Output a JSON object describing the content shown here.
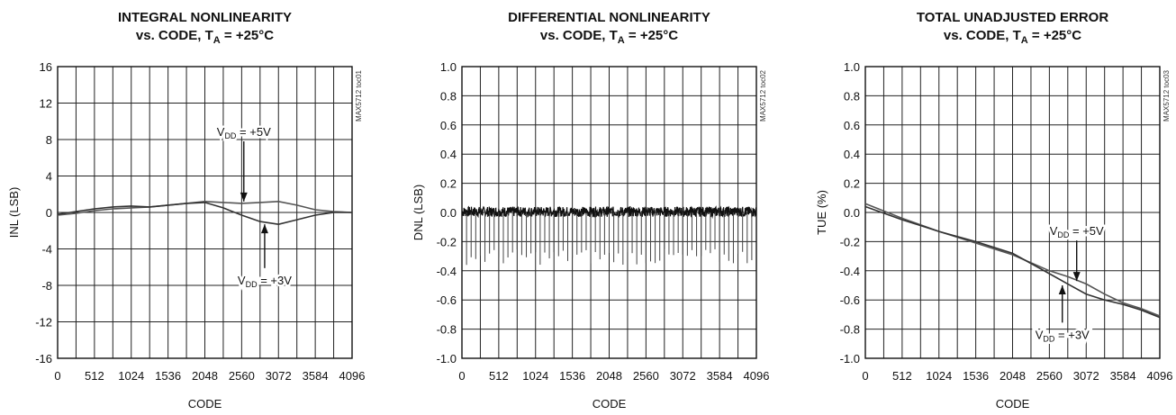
{
  "chart_data": [
    {
      "type": "line",
      "title_line1": "INTEGRAL NONLINEARITY",
      "title_line2_prefix": "vs. CODE, T",
      "title_line2_sub": "A",
      "title_line2_suffix": " = +25°C",
      "xlabel": "CODE",
      "ylabel": "INL (LSB)",
      "side_label": "MAX5712 toc01",
      "xlim": [
        0,
        4096
      ],
      "ylim": [
        -16,
        16
      ],
      "xticks": [
        "0",
        "512",
        "1024",
        "1536",
        "2048",
        "2560",
        "3072",
        "3584",
        "4096"
      ],
      "yticks": [
        "16",
        "12",
        "8",
        "4",
        "0",
        "-4",
        "-8",
        "-12",
        "-16"
      ],
      "grid": true,
      "series": [
        {
          "name": "VDD = +5V",
          "x": [
            0,
            256,
            512,
            768,
            1024,
            1280,
            1536,
            1792,
            2048,
            2304,
            2560,
            2816,
            3072,
            3328,
            3584,
            3840,
            4096
          ],
          "y": [
            -0.3,
            -0.1,
            0.2,
            0.4,
            0.5,
            0.6,
            0.8,
            1.0,
            1.2,
            1.1,
            1.0,
            1.1,
            1.2,
            0.8,
            0.3,
            0.1,
            0.0
          ]
        },
        {
          "name": "VDD = +3V",
          "x": [
            0,
            256,
            512,
            768,
            1024,
            1280,
            1536,
            1792,
            2048,
            2304,
            2560,
            2816,
            3072,
            3328,
            3584,
            3840,
            4096
          ],
          "y": [
            -0.2,
            0.1,
            0.4,
            0.6,
            0.7,
            0.6,
            0.8,
            1.0,
            1.1,
            0.5,
            -0.3,
            -1.0,
            -1.3,
            -0.8,
            -0.3,
            0.0,
            0.0
          ]
        }
      ],
      "annotations": [
        {
          "prefix": "V",
          "sub": "DD",
          "suffix": " = +5V",
          "code": 2590,
          "value": 8,
          "arrow_to": [
            2590,
            1.2
          ]
        },
        {
          "prefix": "V",
          "sub": "DD",
          "suffix": " = +3V",
          "code": 2880,
          "value": -6.5,
          "arrow_to": [
            2880,
            -1.3
          ]
        }
      ]
    },
    {
      "type": "line",
      "title_line1": "DIFFERENTIAL NONLINEARITY",
      "title_line2_prefix": "vs. CODE, T",
      "title_line2_sub": "A",
      "title_line2_suffix": " = +25°C",
      "xlabel": "CODE",
      "ylabel": "DNL (LSB)",
      "side_label": "MAX5712 toc02",
      "xlim": [
        0,
        4096
      ],
      "ylim": [
        -1.0,
        1.0
      ],
      "xticks": [
        "0",
        "512",
        "1024",
        "1536",
        "2048",
        "2560",
        "3072",
        "3584",
        "4096"
      ],
      "yticks": [
        "1.0",
        "0.8",
        "0.6",
        "0.4",
        "0.2",
        "0.0",
        "-0.2",
        "-0.4",
        "-0.6",
        "-0.8",
        "-1.0"
      ],
      "grid": true,
      "noise_band": [
        -0.03,
        0.04
      ],
      "spike_interval": 64,
      "spike_depth": [
        -0.36,
        -0.25
      ],
      "series": []
    },
    {
      "type": "line",
      "title_line1": "TOTAL UNADJUSTED ERROR",
      "title_line2_prefix": "vs. CODE, T",
      "title_line2_sub": "A",
      "title_line2_suffix": " = +25°C",
      "xlabel": "CODE",
      "ylabel": "TUE (%)",
      "side_label": "MAX5712 toc03",
      "xlim": [
        0,
        4096
      ],
      "ylim": [
        -1.0,
        1.0
      ],
      "xticks": [
        "0",
        "512",
        "1024",
        "1536",
        "2048",
        "2560",
        "3072",
        "3584",
        "4096"
      ],
      "yticks": [
        "1.0",
        "0.8",
        "0.6",
        "0.4",
        "0.2",
        "0.0",
        "-0.2",
        "-0.4",
        "-0.6",
        "-0.8",
        "-1.0"
      ],
      "grid": true,
      "series": [
        {
          "name": "VDD = +5V",
          "x": [
            0,
            512,
            1024,
            1536,
            2048,
            2560,
            2816,
            3072,
            3328,
            3584,
            3840,
            4096
          ],
          "y": [
            0.06,
            -0.04,
            -0.13,
            -0.21,
            -0.29,
            -0.4,
            -0.44,
            -0.49,
            -0.56,
            -0.62,
            -0.66,
            -0.71
          ]
        },
        {
          "name": "VDD = +3V",
          "x": [
            0,
            512,
            1024,
            1536,
            2048,
            2560,
            2816,
            3072,
            3328,
            3584,
            3840,
            4096
          ],
          "y": [
            0.04,
            -0.05,
            -0.13,
            -0.2,
            -0.28,
            -0.42,
            -0.49,
            -0.56,
            -0.6,
            -0.63,
            -0.67,
            -0.72
          ]
        }
      ],
      "annotations": [
        {
          "prefix": "V",
          "sub": "DD",
          "suffix": " = +5V",
          "code": 2940,
          "value": -0.18,
          "arrow_to": [
            2940,
            -0.47
          ]
        },
        {
          "prefix": "V",
          "sub": "DD",
          "suffix": " = +3V",
          "code": 2740,
          "value": -0.78,
          "arrow_to": [
            2740,
            -0.5
          ]
        }
      ]
    }
  ]
}
